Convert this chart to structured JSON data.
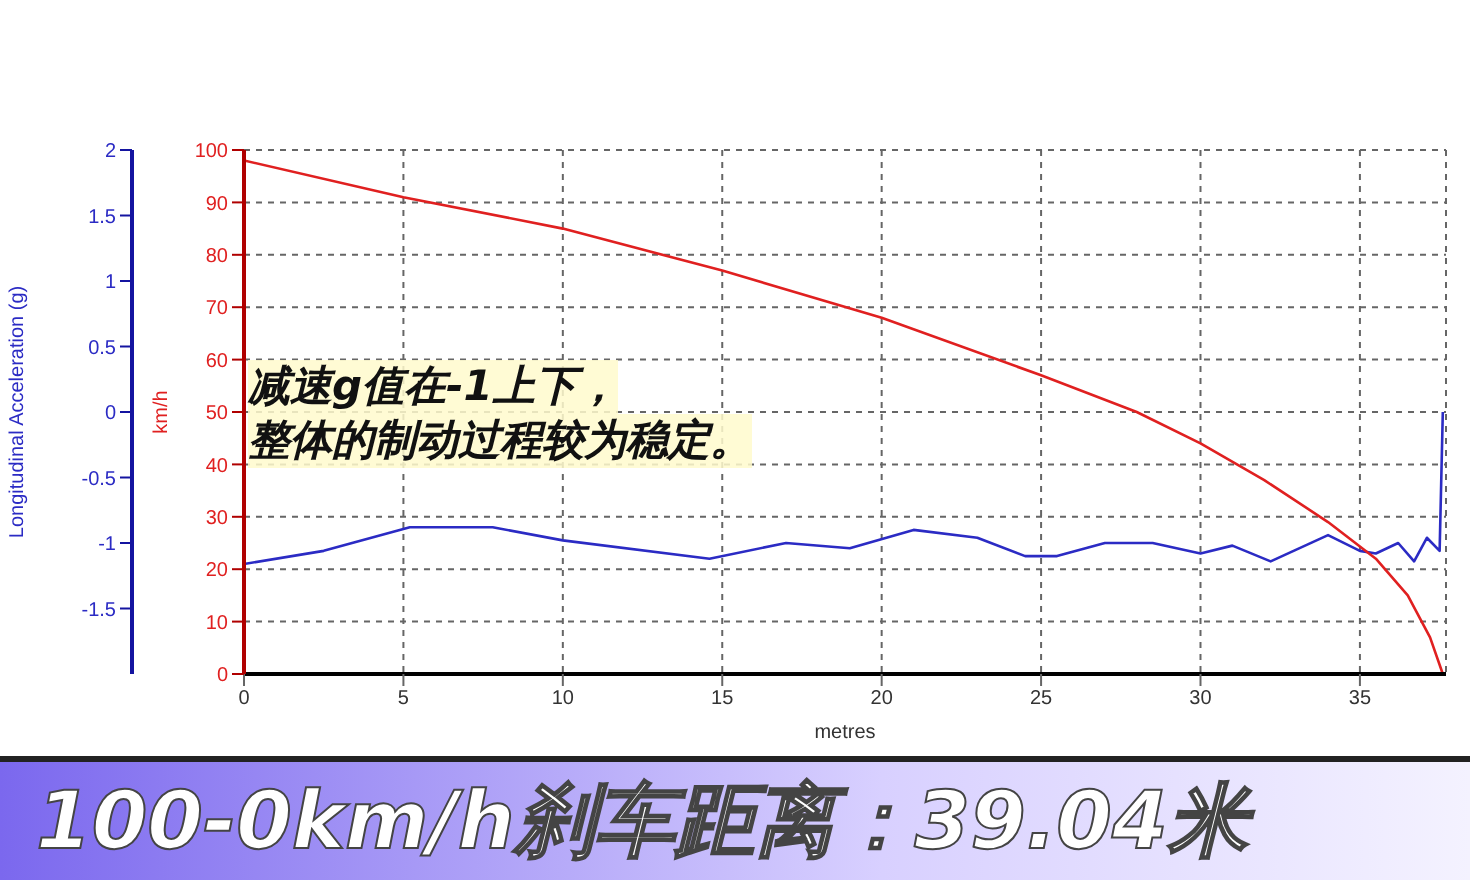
{
  "chart_data": {
    "type": "line",
    "title": "100-0km/h刹车距离：39.04米",
    "xlabel": "metres",
    "ylabel": "Longitudinal Acceleration (g)",
    "y2label": "km/h",
    "annotations": [
      "减速g值在-1上下，",
      "整体的制动过程较为稳定。"
    ],
    "xlim": [
      0,
      37.7
    ],
    "xticks": [
      0,
      5,
      10,
      15,
      20,
      25,
      30,
      35
    ],
    "ylim": [
      -2,
      2
    ],
    "yticks": [
      -1.5,
      -1,
      -0.5,
      0,
      0.5,
      1,
      1.5,
      2
    ],
    "y2lim": [
      0,
      100
    ],
    "y2ticks": [
      0,
      10,
      20,
      30,
      40,
      50,
      60,
      70,
      80,
      90,
      100
    ],
    "grid": true,
    "marker": "none",
    "line_style": "solid",
    "legend": false,
    "series": [
      {
        "color": "#2b2bc4",
        "axis": "y",
        "x": [
          0,
          2.5,
          5.2,
          7.8,
          10,
          14.6,
          17,
          19,
          21,
          23,
          24.5,
          25.5,
          27,
          28.5,
          30,
          31,
          32.2,
          34,
          35,
          35.5,
          36.2,
          36.7,
          37.1,
          37.5,
          37.6
        ],
        "values": [
          -1.16,
          -1.06,
          -0.88,
          -0.88,
          -0.98,
          -1.12,
          -1.0,
          -1.04,
          -0.9,
          -0.96,
          -1.1,
          -1.1,
          -1.0,
          -1.0,
          -1.08,
          -1.02,
          -1.14,
          -0.94,
          -1.06,
          -1.08,
          -1.0,
          -1.14,
          -0.96,
          -1.06,
          0
        ]
      },
      {
        "color": "#e02020",
        "axis": "y2",
        "x": [
          0,
          5,
          10,
          15,
          20,
          25,
          28,
          30,
          32,
          34,
          35.5,
          36.5,
          37.2,
          37.6
        ],
        "values": [
          98,
          91,
          85,
          77,
          68,
          57,
          50,
          44,
          37,
          29,
          22,
          15,
          7,
          0
        ]
      }
    ]
  }
}
